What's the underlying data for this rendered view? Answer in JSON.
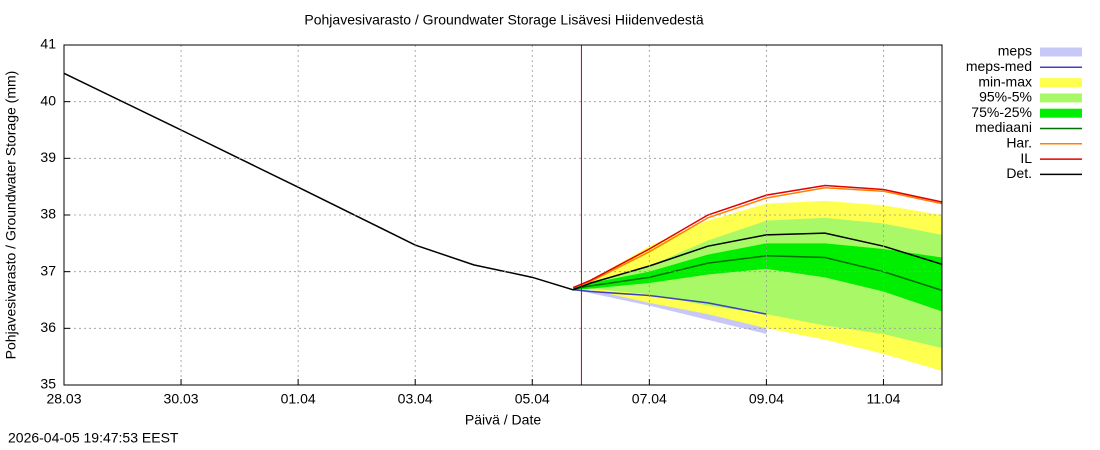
{
  "chart_data": {
    "type": "line",
    "title": "Pohjavesivarasto / Groundwater Storage   Lisävesi Hiidenvedestä",
    "x_label": "Päivä / Date",
    "y_label": "Pohjavesivarasto / Groundwater Storage (mm)",
    "timestamp": "2026-04-05 19:47:53 EEST",
    "xlim": [
      0,
      15
    ],
    "xticks": [
      {
        "value": 0,
        "label": "28.03"
      },
      {
        "value": 2,
        "label": "30.03"
      },
      {
        "value": 4,
        "label": "01.04"
      },
      {
        "value": 6,
        "label": "03.04"
      },
      {
        "value": 8,
        "label": "05.04"
      },
      {
        "value": 10,
        "label": "07.04"
      },
      {
        "value": 12,
        "label": "09.04"
      },
      {
        "value": 14,
        "label": "11.04"
      }
    ],
    "ylim": [
      35,
      41
    ],
    "yticks": [
      35,
      36,
      37,
      38,
      39,
      40,
      41
    ],
    "grid": true,
    "forecast_start": {
      "x": 8.84,
      "color": "#cc0000"
    },
    "series": [
      {
        "name": "meps",
        "kind": "band",
        "color": "#c8c8f8",
        "x": [
          8.7,
          9,
          10,
          11,
          12
        ],
        "upper": [
          36.68,
          36.67,
          36.6,
          36.5,
          36.3
        ],
        "lower": [
          36.68,
          36.62,
          36.4,
          36.15,
          35.9
        ]
      },
      {
        "name": "meps-med",
        "kind": "line",
        "color": "#4040c0",
        "x": [
          8.7,
          9,
          10,
          11,
          12
        ],
        "values": [
          36.68,
          36.65,
          36.58,
          36.45,
          36.25
        ]
      },
      {
        "name": "min-max",
        "kind": "band",
        "color": "#ffff50",
        "x": [
          8.7,
          9,
          10,
          11,
          12,
          13,
          14,
          15
        ],
        "upper": [
          36.72,
          36.85,
          37.45,
          37.9,
          38.2,
          38.25,
          38.17,
          38.0
        ],
        "lower": [
          36.68,
          36.68,
          36.45,
          36.25,
          36.0,
          35.8,
          35.55,
          35.25
        ]
      },
      {
        "name": "95%-5%",
        "kind": "band",
        "color": "#a8f868",
        "x": [
          8.7,
          9,
          10,
          11,
          12,
          13,
          14,
          15
        ],
        "upper": [
          36.72,
          36.8,
          37.1,
          37.55,
          37.9,
          37.95,
          37.85,
          37.65
        ],
        "lower": [
          36.68,
          36.7,
          36.6,
          36.4,
          36.25,
          36.05,
          35.9,
          35.65
        ]
      },
      {
        "name": "75%-25%",
        "kind": "band",
        "color": "#00ee00",
        "x": [
          8.7,
          9,
          10,
          11,
          12,
          13,
          14,
          15
        ],
        "upper": [
          36.72,
          36.8,
          37.0,
          37.3,
          37.5,
          37.5,
          37.4,
          37.25
        ],
        "lower": [
          36.68,
          36.7,
          36.8,
          36.95,
          37.05,
          36.9,
          36.65,
          36.3
        ]
      },
      {
        "name": "mediaani",
        "kind": "line",
        "color": "#007000",
        "x": [
          8.7,
          9,
          10,
          11,
          12,
          13,
          14,
          15
        ],
        "values": [
          36.7,
          36.75,
          36.9,
          37.15,
          37.28,
          37.25,
          37.0,
          36.67
        ]
      },
      {
        "name": "Har.",
        "kind": "line",
        "color": "#ff8000",
        "x": [
          8.7,
          9,
          10,
          11,
          12,
          13,
          14,
          15
        ],
        "values": [
          36.72,
          36.83,
          37.35,
          37.95,
          38.3,
          38.48,
          38.42,
          38.2
        ]
      },
      {
        "name": "IL",
        "kind": "line",
        "color": "#e00000",
        "x": [
          8.7,
          9,
          10,
          11,
          12,
          13,
          14,
          15
        ],
        "values": [
          36.72,
          36.85,
          37.4,
          38.0,
          38.35,
          38.52,
          38.45,
          38.23
        ]
      },
      {
        "name": "Det.",
        "kind": "line",
        "color": "#000000",
        "x": [
          0,
          2,
          4,
          6,
          7,
          8,
          8.7,
          9,
          10,
          11,
          12,
          13,
          14,
          15
        ],
        "values": [
          40.5,
          39.5,
          38.49,
          37.47,
          37.12,
          36.9,
          36.68,
          36.8,
          37.1,
          37.45,
          37.65,
          37.68,
          37.45,
          37.13
        ]
      }
    ]
  }
}
